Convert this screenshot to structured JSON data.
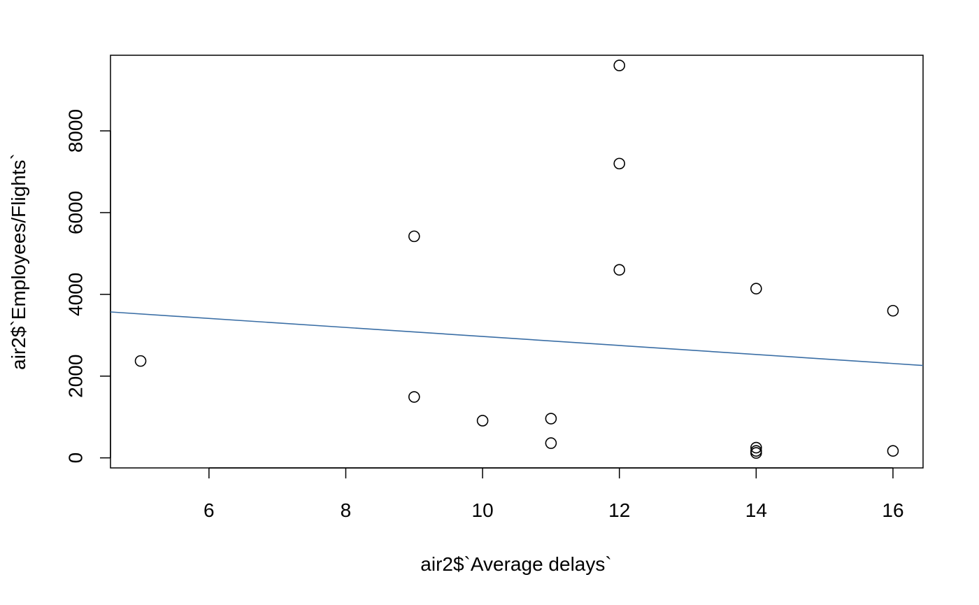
{
  "chart_data": {
    "type": "scatter",
    "title": "",
    "xlabel": "air2$`Average delays`",
    "ylabel": "air2$`Employees/Flights`",
    "xlim": [
      4.56,
      16.44
    ],
    "ylim": [
      -246,
      9850
    ],
    "x_ticks": [
      6,
      8,
      10,
      12,
      14,
      16
    ],
    "x_tick_labels": [
      "6",
      "8",
      "10",
      "12",
      "14",
      "16"
    ],
    "y_ticks": [
      0,
      2000,
      4000,
      6000,
      8000
    ],
    "y_tick_labels": [
      "0",
      "2000",
      "4000",
      "6000",
      "8000"
    ],
    "grid": false,
    "legend": "none",
    "points": [
      {
        "x": 5,
        "y": 2370
      },
      {
        "x": 9,
        "y": 5420
      },
      {
        "x": 9,
        "y": 1490
      },
      {
        "x": 10,
        "y": 910
      },
      {
        "x": 11,
        "y": 960
      },
      {
        "x": 11,
        "y": 360
      },
      {
        "x": 12,
        "y": 9600
      },
      {
        "x": 12,
        "y": 7200
      },
      {
        "x": 12,
        "y": 4600
      },
      {
        "x": 14,
        "y": 4140
      },
      {
        "x": 14,
        "y": 250
      },
      {
        "x": 14,
        "y": 170
      },
      {
        "x": 14,
        "y": 120
      },
      {
        "x": 16,
        "y": 3600
      },
      {
        "x": 16,
        "y": 170
      }
    ],
    "trend_line": {
      "x": [
        4.56,
        16.44
      ],
      "y": [
        3570,
        2260
      ]
    },
    "colors": {
      "points": "#000000",
      "trend_line": "#3a6ea5",
      "axes": "#000000"
    }
  }
}
